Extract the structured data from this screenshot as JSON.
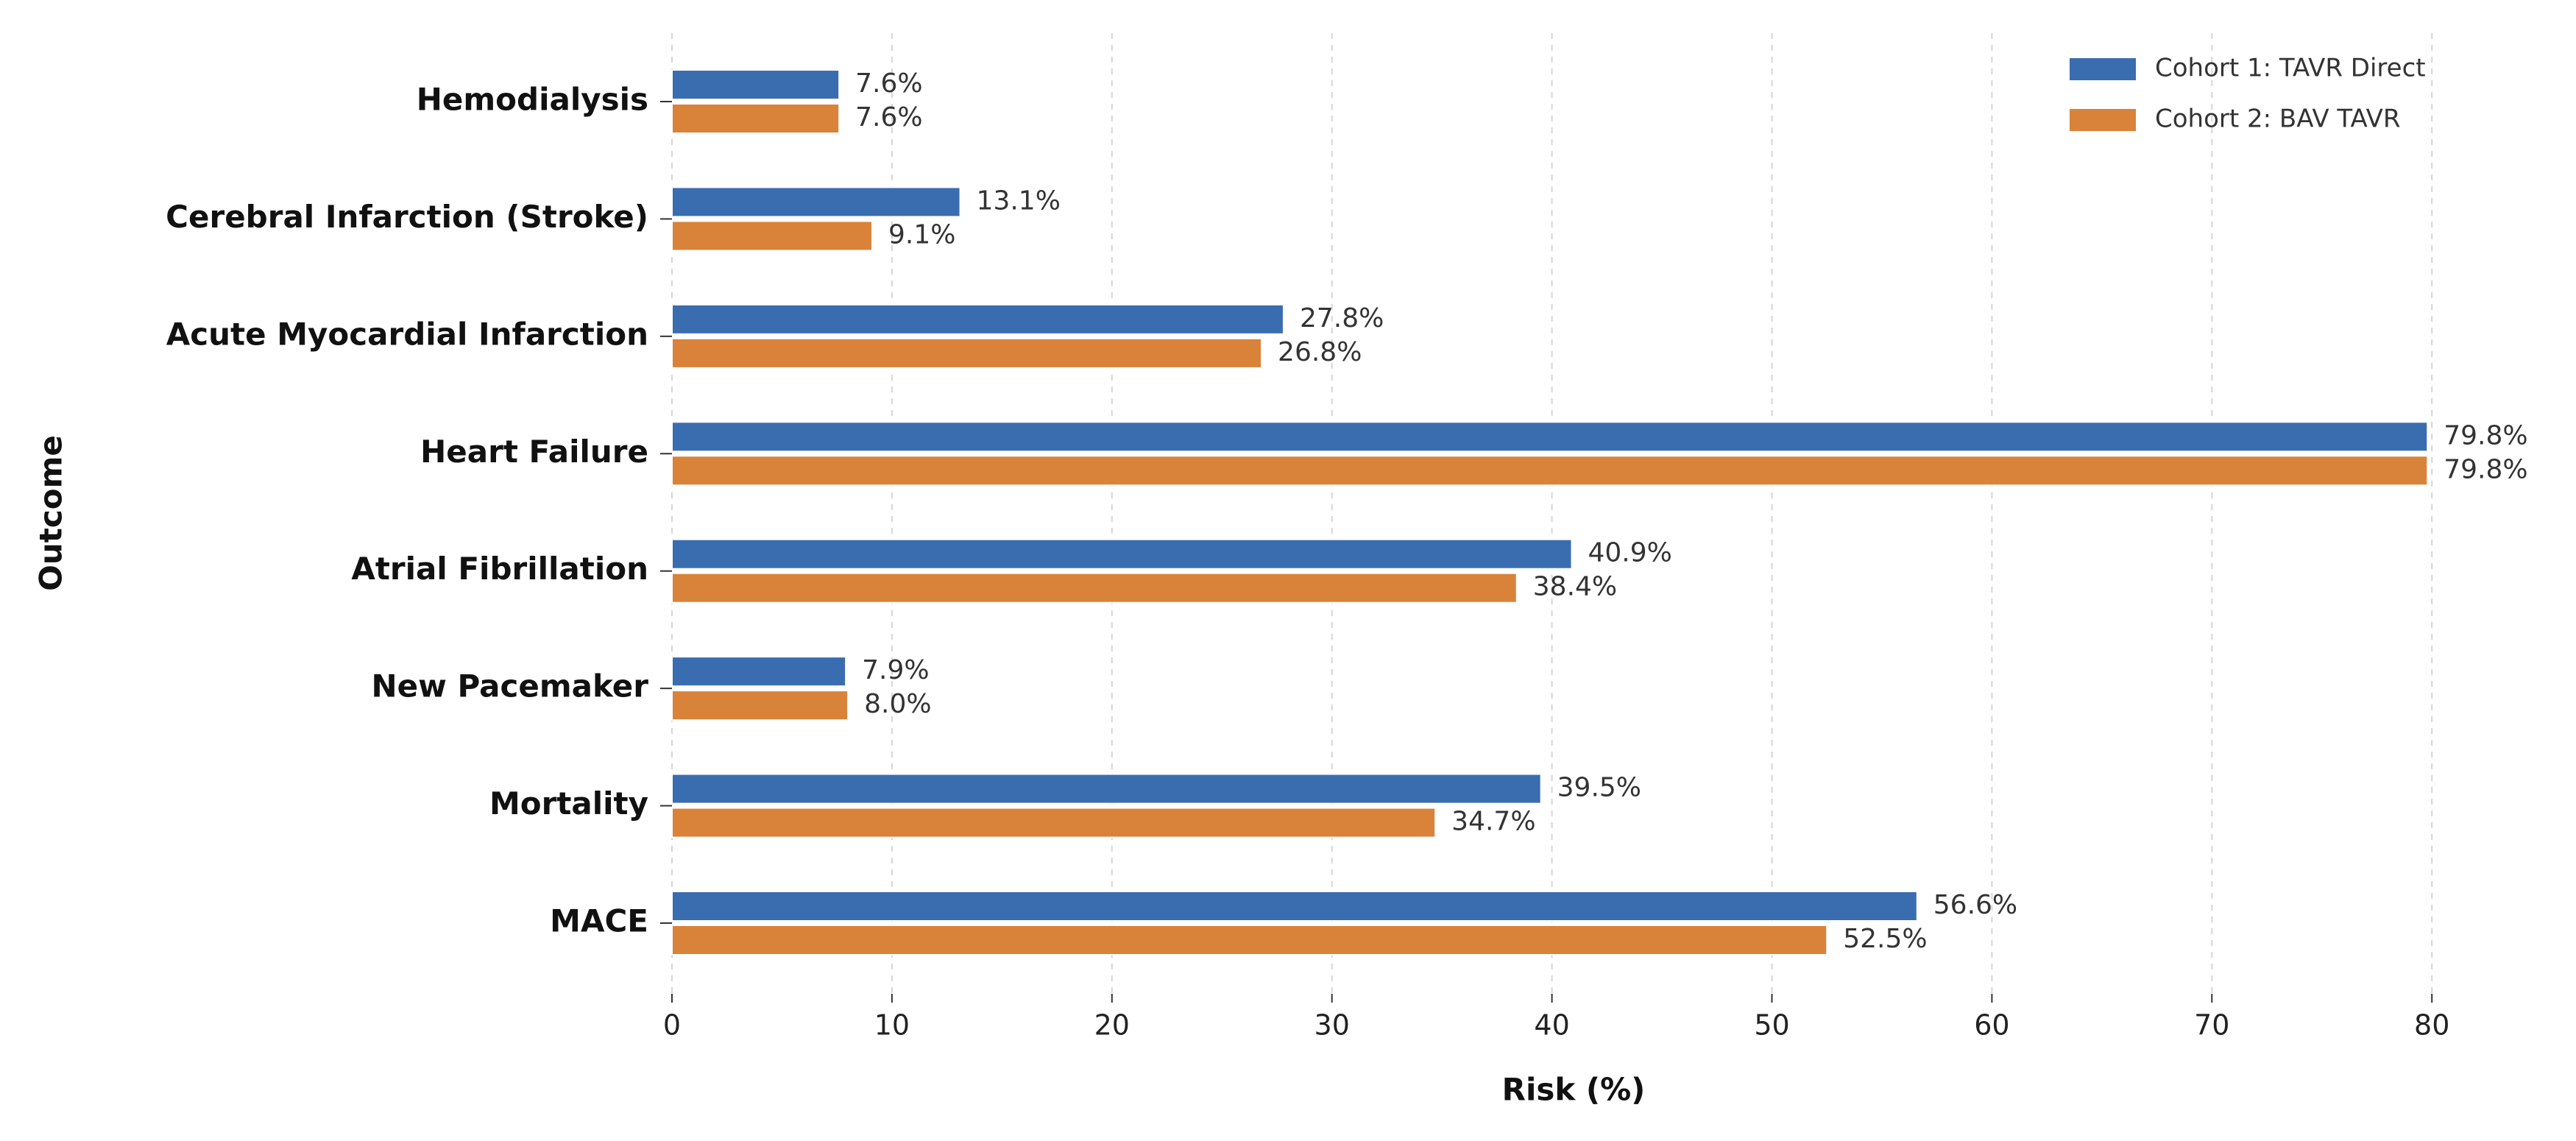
{
  "chart_data": {
    "type": "barh",
    "xlabel": "Risk (%)",
    "ylabel": "Outcome",
    "categories": [
      "Hemodialysis",
      "Cerebral Infarction (Stroke)",
      "Acute Myocardial Infarction",
      "Heart Failure",
      "Atrial Fibrillation",
      "New Pacemaker",
      "Mortality",
      "MACE"
    ],
    "series": [
      {
        "name": "Cohort 1: TAVR Direct",
        "color": "#3a6db0",
        "values": [
          7.6,
          13.1,
          27.8,
          79.8,
          40.9,
          7.9,
          39.5,
          56.6
        ],
        "value_labels": [
          "7.6%",
          "13.1%",
          "27.8%",
          "79.8%",
          "40.9%",
          "7.9%",
          "39.5%",
          "56.6%"
        ]
      },
      {
        "name": "Cohort 2: BAV TAVR",
        "color": "#d98239",
        "values": [
          7.6,
          9.1,
          26.8,
          79.8,
          38.4,
          8.0,
          34.7,
          52.5
        ],
        "value_labels": [
          "7.6%",
          "9.1%",
          "26.8%",
          "79.8%",
          "38.4%",
          "8.0%",
          "34.7%",
          "52.5%"
        ]
      }
    ],
    "xlim": [
      0,
      82
    ],
    "xticks": [
      0,
      10,
      20,
      30,
      40,
      50,
      60,
      70,
      80
    ],
    "grid": true,
    "legend": "upper right"
  }
}
